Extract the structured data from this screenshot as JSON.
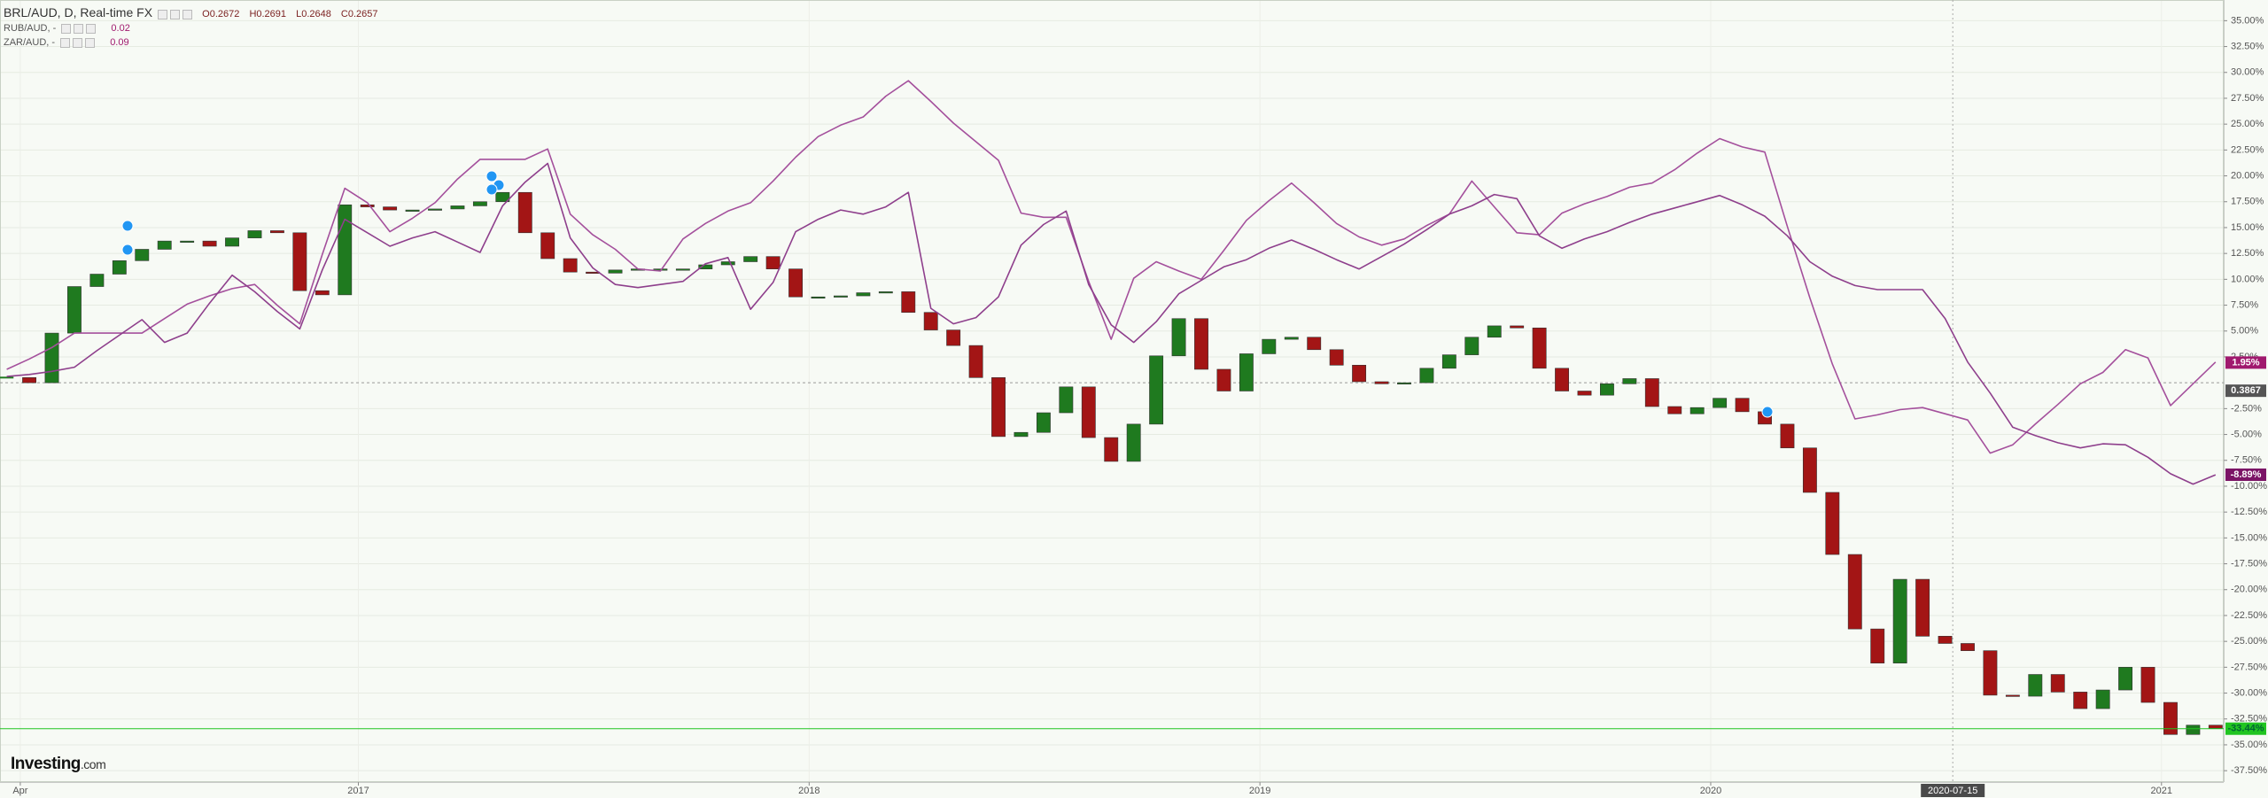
{
  "chart_data": {
    "type": "candlestick",
    "brand": "Investing",
    "brand_suffix": ".com",
    "ohlc": [
      "O0.2672",
      "H0.2691",
      "L0.2648",
      "C0.2657"
    ],
    "up_color": "#1f7a1f",
    "down_color": "#a31515",
    "grid": true,
    "xlim": [
      2016.205,
      2021.138
    ],
    "ylim": [
      -38.6,
      37
    ],
    "xticks": [
      {
        "value": 2016.25,
        "label": "Apr"
      },
      {
        "value": 2017,
        "label": "2017"
      },
      {
        "value": 2018,
        "label": "2018"
      },
      {
        "value": 2019,
        "label": "2019"
      },
      {
        "value": 2020,
        "label": "2020"
      },
      {
        "value": 2021,
        "label": "2021"
      }
    ],
    "yticks": [
      {
        "value": 35,
        "label": "35.00%"
      },
      {
        "value": 32.5,
        "label": "32.50%"
      },
      {
        "value": 30,
        "label": "30.00%"
      },
      {
        "value": 27.5,
        "label": "27.50%"
      },
      {
        "value": 25,
        "label": "25.00%"
      },
      {
        "value": 22.5,
        "label": "22.50%"
      },
      {
        "value": 20,
        "label": "20.00%"
      },
      {
        "value": 17.5,
        "label": "17.50%"
      },
      {
        "value": 15,
        "label": "15.00%"
      },
      {
        "value": 12.5,
        "label": "12.50%"
      },
      {
        "value": 10,
        "label": "10.00%"
      },
      {
        "value": 7.5,
        "label": "7.50%"
      },
      {
        "value": 5,
        "label": "5.00%"
      },
      {
        "value": 2.5,
        "label": "2.50%"
      },
      {
        "value": -2.5,
        "label": "-2.50%"
      },
      {
        "value": -5,
        "label": "-5.00%"
      },
      {
        "value": -7.5,
        "label": "-7.50%"
      },
      {
        "value": -10,
        "label": "-10.00%"
      },
      {
        "value": -12.5,
        "label": "-12.50%"
      },
      {
        "value": -15,
        "label": "-15.00%"
      },
      {
        "value": -17.5,
        "label": "-17.50%"
      },
      {
        "value": -20,
        "label": "-20.00%"
      },
      {
        "value": -22.5,
        "label": "-22.50%"
      },
      {
        "value": -25,
        "label": "-25.00%"
      },
      {
        "value": -27.5,
        "label": "-27.50%"
      },
      {
        "value": -30,
        "label": "-30.00%"
      },
      {
        "value": -32.5,
        "label": "-32.50%"
      },
      {
        "value": -35,
        "label": "-35.00%"
      },
      {
        "value": -37.5,
        "label": "-37.50%"
      }
    ],
    "base_level": 0,
    "base_label": "0.3867",
    "crosshair": {
      "value": 2020.537,
      "label": "2020-07-15"
    },
    "x": [
      2016.22,
      2016.27,
      2016.32,
      2016.37,
      2016.42,
      2016.47,
      2016.52,
      2016.57,
      2016.62,
      2016.67,
      2016.72,
      2016.77,
      2016.82,
      2016.87,
      2016.92,
      2016.97,
      2017.02,
      2017.07,
      2017.12,
      2017.17,
      2017.22,
      2017.27,
      2017.32,
      2017.37,
      2017.42,
      2017.47,
      2017.52,
      2017.57,
      2017.62,
      2017.67,
      2017.72,
      2017.77,
      2017.82,
      2017.87,
      2017.92,
      2017.97,
      2018.02,
      2018.07,
      2018.12,
      2018.17,
      2018.22,
      2018.27,
      2018.32,
      2018.37,
      2018.42,
      2018.47,
      2018.52,
      2018.57,
      2018.62,
      2018.67,
      2018.72,
      2018.77,
      2018.82,
      2018.87,
      2018.92,
      2018.97,
      2019.02,
      2019.07,
      2019.12,
      2019.17,
      2019.22,
      2019.27,
      2019.32,
      2019.37,
      2019.42,
      2019.47,
      2019.52,
      2019.57,
      2019.62,
      2019.67,
      2019.72,
      2019.77,
      2019.82,
      2019.87,
      2019.92,
      2019.97,
      2020.02,
      2020.07,
      2020.12,
      2020.17,
      2020.22,
      2020.27,
      2020.32,
      2020.37,
      2020.42,
      2020.47,
      2020.52,
      2020.57,
      2020.62,
      2020.67,
      2020.72,
      2020.77,
      2020.82,
      2020.87,
      2020.92,
      2020.97,
      2021.02,
      2021.07,
      2021.12
    ],
    "series": [
      {
        "name": "BRL/AUD, D, Real-time FX",
        "type": "candlestick",
        "color": "#21c521",
        "last_value": {
          "value": -33.44,
          "label": "-33.44%"
        },
        "values": [
          0.5,
          0,
          4.8,
          9.3,
          10.5,
          11.8,
          12.9,
          13.7,
          13.7,
          13.2,
          14,
          14.7,
          14.5,
          8.9,
          8.5,
          17.2,
          17,
          16.7,
          16.7,
          16.8,
          17.1,
          17.5,
          18.4,
          14.5,
          12,
          10.7,
          10.6,
          10.9,
          11,
          11,
          11,
          11.4,
          11.7,
          12.2,
          11,
          8.3,
          8.3,
          8.4,
          8.7,
          8.8,
          6.8,
          5.1,
          3.6,
          0.5,
          -5.2,
          -4.8,
          -2.9,
          -0.4,
          -5.3,
          -7.6,
          -4,
          2.6,
          6.2,
          1.3,
          -0.8,
          2.8,
          4.2,
          4.4,
          3.2,
          1.7,
          0.1,
          -0.1,
          0,
          1.4,
          2.7,
          4.4,
          5.5,
          5.3,
          1.4,
          -0.8,
          -1.2,
          -0.1,
          0.4,
          -2.3,
          -3,
          -2.4,
          -1.5,
          -2.8,
          -4,
          -6.3,
          -10.6,
          -16.6,
          -23.8,
          -27.1,
          -19,
          -24.5,
          -25.2,
          -25.9,
          -30.2,
          -30.3,
          -28.2,
          -29.9,
          -31.5,
          -29.7,
          -27.5,
          -30.9,
          -34,
          -33.1,
          -33.4
        ]
      },
      {
        "name": "RUB/AUD, -",
        "legend_value": "0.02",
        "type": "line",
        "color": "#a4509c",
        "label_color": "#a0196e",
        "last_value": {
          "value": 1.95,
          "label": "1.95%"
        },
        "values": [
          1.3,
          2.3,
          3.4,
          4.8,
          4.8,
          4.8,
          4.8,
          6.2,
          7.6,
          8.4,
          9.1,
          9.5,
          7.5,
          5.7,
          12.4,
          18.8,
          17.4,
          14.6,
          15.9,
          17.4,
          19.7,
          21.6,
          21.6,
          21.6,
          22.6,
          16.3,
          14.3,
          12.9,
          11,
          10.8,
          13.9,
          15.4,
          16.6,
          17.4,
          19.5,
          21.8,
          23.8,
          24.9,
          25.7,
          27.7,
          29.2,
          27.2,
          25.1,
          23.3,
          21.5,
          16.4,
          16,
          16,
          9.8,
          4.2,
          10.1,
          11.7,
          10.8,
          10,
          12.8,
          15.7,
          17.6,
          19.3,
          17.4,
          15.4,
          14.1,
          13.3,
          13.9,
          15.2,
          16.3,
          19.5,
          17,
          14.5,
          14.3,
          16.4,
          17.3,
          18,
          18.9,
          19.3,
          20.6,
          22.2,
          23.6,
          22.8,
          22.3,
          15.1,
          8.2,
          1.8,
          -3.5,
          -3.1,
          -2.6,
          -2.4,
          -3,
          -3.6,
          -6.8,
          -6,
          -4,
          -2.1,
          -0.1,
          1,
          3.2,
          2.4,
          -2.2,
          -0.1,
          2
        ]
      },
      {
        "name": "ZAR/AUD, -",
        "legend_value": "0.09",
        "type": "line",
        "color": "#8e3f8c",
        "label_color": "#7b1466",
        "last_value": {
          "value": -8.89,
          "label": "-8.89%"
        },
        "values": [
          0.6,
          0.8,
          1.1,
          1.5,
          3.1,
          4.6,
          6.1,
          3.9,
          4.8,
          7.7,
          10.4,
          8.8,
          6.9,
          5.2,
          10.9,
          15.8,
          14.5,
          13.2,
          14,
          14.6,
          13.6,
          12.6,
          17.1,
          19.4,
          21.2,
          14,
          11.1,
          9.5,
          9.2,
          9.5,
          9.8,
          11.5,
          12.1,
          7.1,
          9.7,
          14.6,
          15.8,
          16.7,
          16.3,
          17,
          18.4,
          7.2,
          5.7,
          6.3,
          8.3,
          13.3,
          15.3,
          16.6,
          9.5,
          5.6,
          3.9,
          5.9,
          8.6,
          9.9,
          11.2,
          11.9,
          13,
          13.8,
          12.9,
          11.9,
          11,
          12.2,
          13.4,
          14.8,
          16.3,
          17.1,
          18.2,
          17.8,
          14.2,
          13,
          13.9,
          14.6,
          15.5,
          16.3,
          16.9,
          17.5,
          18.1,
          17.2,
          16.1,
          14.2,
          11.7,
          10.3,
          9.4,
          9,
          9,
          9,
          6.2,
          2,
          -1,
          -4.3,
          -5.1,
          -5.8,
          -6.3,
          -5.9,
          -6,
          -7.2,
          -8.8,
          -9.8,
          -8.9
        ]
      }
    ]
  }
}
